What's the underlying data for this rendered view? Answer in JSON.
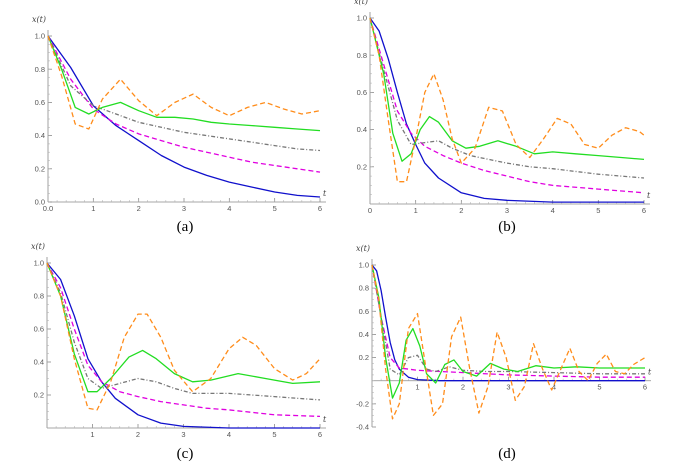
{
  "chart_data": [
    {
      "type": "line",
      "caption": "(a)",
      "ylabel": "x(t)",
      "xlabel": "t",
      "xlim": [
        0,
        6
      ],
      "ylim": [
        0,
        1.0
      ],
      "xticks": [
        "1",
        "2",
        "3",
        "4",
        "5",
        "6"
      ],
      "yticks": [
        "0.0",
        "0.2",
        "0.4",
        "0.6",
        "0.8",
        "1.0"
      ],
      "origin_x_tick": "0.0",
      "series": [
        {
          "color": "#1010cc",
          "dash": "solid",
          "x": [
            0,
            0.5,
            1,
            1.5,
            2,
            2.5,
            3,
            3.5,
            4,
            4.5,
            5,
            5.5,
            6
          ],
          "values": [
            1,
            0.81,
            0.58,
            0.46,
            0.37,
            0.28,
            0.21,
            0.16,
            0.12,
            0.09,
            0.06,
            0.04,
            0.03
          ]
        },
        {
          "color": "#e000e0",
          "dash": "dashed",
          "x": [
            0,
            0.5,
            1,
            1.5,
            2,
            2.5,
            3,
            3.5,
            4,
            4.5,
            5,
            5.5,
            6
          ],
          "values": [
            1,
            0.74,
            0.56,
            0.47,
            0.41,
            0.37,
            0.33,
            0.3,
            0.27,
            0.24,
            0.22,
            0.2,
            0.18
          ]
        },
        {
          "color": "#777777",
          "dash": "dashdot",
          "x": [
            0,
            0.5,
            1,
            1.5,
            2,
            2.5,
            3,
            3.5,
            4,
            4.5,
            5,
            5.5,
            6
          ],
          "values": [
            1,
            0.7,
            0.58,
            0.53,
            0.48,
            0.45,
            0.42,
            0.4,
            0.38,
            0.36,
            0.34,
            0.32,
            0.31
          ]
        },
        {
          "color": "#22dd22",
          "dash": "solid",
          "x": [
            0,
            0.3,
            0.6,
            0.9,
            1.2,
            1.6,
            2.0,
            2.4,
            2.8,
            3.2,
            3.6,
            4.0,
            4.5,
            5,
            5.5,
            6
          ],
          "values": [
            1,
            0.8,
            0.57,
            0.53,
            0.57,
            0.6,
            0.55,
            0.51,
            0.51,
            0.5,
            0.48,
            0.47,
            0.46,
            0.45,
            0.44,
            0.43
          ]
        },
        {
          "color": "#ff8c1a",
          "dash": "dashed",
          "x": [
            0,
            0.3,
            0.6,
            0.9,
            1.2,
            1.6,
            2.0,
            2.4,
            2.8,
            3.2,
            3.6,
            4.0,
            4.4,
            4.8,
            5.2,
            5.6,
            6
          ],
          "values": [
            1,
            0.76,
            0.47,
            0.44,
            0.62,
            0.74,
            0.61,
            0.52,
            0.6,
            0.65,
            0.57,
            0.52,
            0.57,
            0.6,
            0.56,
            0.53,
            0.55
          ]
        }
      ]
    },
    {
      "type": "line",
      "caption": "(b)",
      "ylabel": "x(t)",
      "xlabel": "t",
      "xlim": [
        0,
        6
      ],
      "ylim": [
        0,
        1.0
      ],
      "xticks": [
        "1",
        "2",
        "3",
        "4",
        "5",
        "6"
      ],
      "yticks": [
        "0.2",
        "0.4",
        "0.6",
        "0.8",
        "1.0"
      ],
      "origin_x_tick": "0",
      "series": [
        {
          "color": "#1010cc",
          "dash": "solid",
          "x": [
            0,
            0.2,
            0.4,
            0.6,
            0.8,
            1.0,
            1.2,
            1.5,
            2,
            2.5,
            3,
            4,
            5,
            6
          ],
          "values": [
            1,
            0.93,
            0.78,
            0.6,
            0.43,
            0.32,
            0.22,
            0.14,
            0.06,
            0.03,
            0.02,
            0.01,
            0.01,
            0.01
          ]
        },
        {
          "color": "#e000e0",
          "dash": "dashed",
          "x": [
            0,
            0.3,
            0.6,
            0.9,
            1.2,
            1.6,
            2,
            2.5,
            3,
            3.5,
            4,
            5,
            6
          ],
          "values": [
            1,
            0.75,
            0.5,
            0.38,
            0.31,
            0.26,
            0.22,
            0.18,
            0.15,
            0.12,
            0.1,
            0.08,
            0.06
          ]
        },
        {
          "color": "#777777",
          "dash": "dashdot",
          "x": [
            0,
            0.3,
            0.6,
            0.9,
            1.2,
            1.5,
            1.8,
            2.2,
            2.6,
            3,
            3.5,
            4,
            5,
            6
          ],
          "values": [
            1,
            0.72,
            0.45,
            0.32,
            0.33,
            0.34,
            0.3,
            0.26,
            0.24,
            0.22,
            0.2,
            0.19,
            0.16,
            0.14
          ]
        },
        {
          "color": "#22dd22",
          "dash": "solid",
          "x": [
            0,
            0.3,
            0.5,
            0.7,
            0.9,
            1.1,
            1.3,
            1.5,
            1.8,
            2.1,
            2.4,
            2.8,
            3.2,
            3.6,
            4.0,
            4.5,
            5,
            5.5,
            6
          ],
          "values": [
            1,
            0.7,
            0.38,
            0.23,
            0.27,
            0.4,
            0.47,
            0.44,
            0.34,
            0.3,
            0.31,
            0.34,
            0.31,
            0.27,
            0.28,
            0.27,
            0.26,
            0.25,
            0.24
          ]
        },
        {
          "color": "#ff8c1a",
          "dash": "dashed",
          "x": [
            0,
            0.2,
            0.4,
            0.6,
            0.8,
            1.0,
            1.2,
            1.4,
            1.6,
            1.8,
            2.0,
            2.3,
            2.6,
            2.9,
            3.2,
            3.5,
            3.8,
            4.1,
            4.4,
            4.7,
            5.0,
            5.3,
            5.6,
            5.9,
            6
          ],
          "values": [
            1,
            0.8,
            0.45,
            0.12,
            0.12,
            0.35,
            0.6,
            0.7,
            0.56,
            0.35,
            0.22,
            0.3,
            0.52,
            0.5,
            0.32,
            0.25,
            0.35,
            0.46,
            0.43,
            0.32,
            0.3,
            0.37,
            0.41,
            0.39,
            0.37
          ]
        }
      ]
    },
    {
      "type": "line",
      "caption": "(c)",
      "ylabel": "x(t)",
      "xlabel": "t",
      "xlim": [
        0,
        6
      ],
      "ylim": [
        0,
        1.0
      ],
      "xticks": [
        "1",
        "2",
        "3",
        "4",
        "5",
        "6"
      ],
      "yticks": [
        "0.2",
        "0.4",
        "0.6",
        "0.8",
        "1.0"
      ],
      "origin_x_tick": "",
      "series": [
        {
          "color": "#1010cc",
          "dash": "solid",
          "x": [
            0,
            0.3,
            0.6,
            0.9,
            1.2,
            1.5,
            2,
            2.5,
            3,
            4,
            5,
            6
          ],
          "values": [
            1,
            0.9,
            0.68,
            0.42,
            0.28,
            0.18,
            0.08,
            0.03,
            0.01,
            0.0,
            0.0,
            0.0
          ]
        },
        {
          "color": "#e000e0",
          "dash": "dashed",
          "x": [
            0,
            0.3,
            0.6,
            0.9,
            1.2,
            1.6,
            2,
            2.5,
            3,
            3.5,
            4,
            5,
            6
          ],
          "values": [
            1,
            0.85,
            0.6,
            0.38,
            0.28,
            0.22,
            0.19,
            0.16,
            0.14,
            0.12,
            0.11,
            0.08,
            0.07
          ]
        },
        {
          "color": "#777777",
          "dash": "dashdot",
          "x": [
            0,
            0.3,
            0.6,
            0.9,
            1.2,
            1.6,
            2.0,
            2.4,
            2.8,
            3.2,
            3.6,
            4.0,
            4.5,
            5,
            5.5,
            6
          ],
          "values": [
            1,
            0.82,
            0.52,
            0.3,
            0.24,
            0.27,
            0.3,
            0.28,
            0.24,
            0.21,
            0.21,
            0.21,
            0.2,
            0.19,
            0.18,
            0.17
          ]
        },
        {
          "color": "#22dd22",
          "dash": "solid",
          "x": [
            0,
            0.3,
            0.6,
            0.9,
            1.1,
            1.4,
            1.8,
            2.1,
            2.4,
            2.8,
            3.2,
            3.6,
            4.2,
            4.8,
            5.4,
            6
          ],
          "values": [
            1,
            0.8,
            0.45,
            0.22,
            0.22,
            0.3,
            0.43,
            0.47,
            0.42,
            0.33,
            0.28,
            0.29,
            0.33,
            0.3,
            0.27,
            0.28
          ]
        },
        {
          "color": "#ff8c1a",
          "dash": "dashed",
          "x": [
            0,
            0.3,
            0.6,
            0.9,
            1.1,
            1.4,
            1.7,
            2.0,
            2.2,
            2.5,
            2.8,
            3.2,
            3.6,
            4.0,
            4.3,
            4.6,
            5.0,
            5.4,
            5.7,
            6
          ],
          "values": [
            1,
            0.8,
            0.42,
            0.12,
            0.11,
            0.28,
            0.55,
            0.69,
            0.69,
            0.55,
            0.35,
            0.22,
            0.3,
            0.48,
            0.55,
            0.5,
            0.36,
            0.29,
            0.33,
            0.42
          ]
        }
      ]
    },
    {
      "type": "line",
      "caption": "(d)",
      "ylabel": "x(t)",
      "xlabel": "t",
      "xlim": [
        0,
        6
      ],
      "ylim": [
        -0.4,
        1.0
      ],
      "xticks": [
        "1",
        "2",
        "3",
        "4",
        "5",
        "6"
      ],
      "yticks": [
        "-0.4",
        "-0.2",
        "0.2",
        "0.4",
        "0.6",
        "0.8",
        "1.0"
      ],
      "origin_x_tick": "",
      "series": [
        {
          "color": "#1010cc",
          "dash": "solid",
          "x": [
            0,
            0.1,
            0.2,
            0.3,
            0.4,
            0.5,
            0.6,
            0.8,
            1.0,
            1.5,
            2,
            6
          ],
          "values": [
            1,
            0.95,
            0.78,
            0.55,
            0.33,
            0.18,
            0.1,
            0.03,
            0.01,
            0.0,
            0.0,
            0.0
          ]
        },
        {
          "color": "#e000e0",
          "dash": "dashed",
          "x": [
            0,
            0.2,
            0.4,
            0.6,
            0.8,
            1.0,
            1.5,
            2,
            3,
            4,
            5,
            6
          ],
          "values": [
            1,
            0.55,
            0.2,
            0.11,
            0.1,
            0.09,
            0.08,
            0.07,
            0.05,
            0.04,
            0.03,
            0.03
          ]
        },
        {
          "color": "#777777",
          "dash": "dashdot",
          "x": [
            0,
            0.2,
            0.4,
            0.6,
            0.8,
            1.0,
            1.2,
            1.4,
            1.7,
            2.0,
            2.5,
            3,
            4,
            5,
            6
          ],
          "values": [
            1,
            0.55,
            0.1,
            0.05,
            0.2,
            0.22,
            0.1,
            0.08,
            0.12,
            0.09,
            0.08,
            0.08,
            0.07,
            0.06,
            0.06
          ]
        },
        {
          "color": "#22dd22",
          "dash": "solid",
          "x": [
            0,
            0.15,
            0.3,
            0.45,
            0.6,
            0.75,
            0.9,
            1.05,
            1.2,
            1.4,
            1.6,
            1.8,
            2.0,
            2.3,
            2.6,
            2.9,
            3.2,
            3.6,
            4.0,
            4.5,
            5,
            5.5,
            6
          ],
          "values": [
            1,
            0.72,
            0.2,
            -0.15,
            -0.02,
            0.35,
            0.45,
            0.3,
            0.06,
            -0.02,
            0.14,
            0.18,
            0.08,
            0.04,
            0.15,
            0.1,
            0.08,
            0.13,
            0.11,
            0.12,
            0.11,
            0.11,
            0.11
          ]
        },
        {
          "color": "#ff8c1a",
          "dash": "dashed",
          "x": [
            0,
            0.15,
            0.3,
            0.45,
            0.6,
            0.8,
            1.0,
            1.15,
            1.35,
            1.55,
            1.75,
            1.95,
            2.15,
            2.35,
            2.55,
            2.75,
            2.95,
            3.15,
            3.35,
            3.55,
            3.75,
            3.95,
            4.15,
            4.35,
            4.55,
            4.75,
            4.95,
            5.15,
            5.35,
            5.55,
            5.75,
            6
          ],
          "values": [
            1,
            0.7,
            0.1,
            -0.33,
            -0.2,
            0.45,
            0.58,
            0.2,
            -0.3,
            -0.2,
            0.38,
            0.55,
            0.1,
            -0.28,
            -0.05,
            0.42,
            0.2,
            -0.17,
            -0.05,
            0.32,
            0.1,
            -0.08,
            0.1,
            0.28,
            0.08,
            0.0,
            0.15,
            0.23,
            0.08,
            0.06,
            0.14,
            0.2
          ]
        }
      ]
    }
  ]
}
